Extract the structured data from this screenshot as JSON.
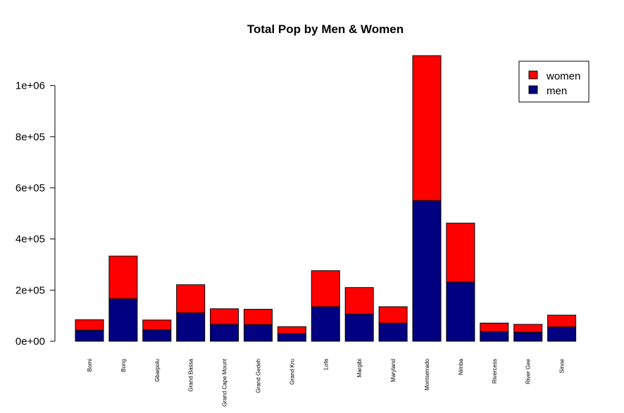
{
  "chart_data": {
    "type": "bar",
    "stacked": true,
    "title": "Total Pop by Men & Women",
    "xlabel": "",
    "ylabel": "",
    "ylim": [
      0,
      1120000
    ],
    "yticks": [
      0,
      200000,
      400000,
      600000,
      800000,
      1000000
    ],
    "ytick_labels": [
      "0e+00",
      "2e+05",
      "4e+05",
      "6e+05",
      "8e+05",
      "1e+06"
    ],
    "categories": [
      "Bomi",
      "Bong",
      "Gbarpolu",
      "Grand Bassa",
      "Grand Cape Mount",
      "Grand Gedeh",
      "Grand Kru",
      "Lofa",
      "Margibi",
      "Maryland",
      "Montserrado",
      "Nimba",
      "Rivercess",
      "River Gee",
      "Sinoe"
    ],
    "series": [
      {
        "name": "men",
        "color": "#000080",
        "values": [
          43000,
          166000,
          44000,
          111000,
          66000,
          65000,
          30000,
          135000,
          106000,
          71000,
          550000,
          231000,
          37000,
          35000,
          56000
        ]
      },
      {
        "name": "women",
        "color": "#ff0000",
        "values": [
          41000,
          167000,
          39000,
          110000,
          61000,
          60000,
          27000,
          141000,
          104000,
          64000,
          567000,
          231000,
          34000,
          31000,
          46000
        ]
      }
    ],
    "legend": {
      "position": "top-right",
      "entries": [
        "women",
        "men"
      ]
    },
    "grid": false
  }
}
